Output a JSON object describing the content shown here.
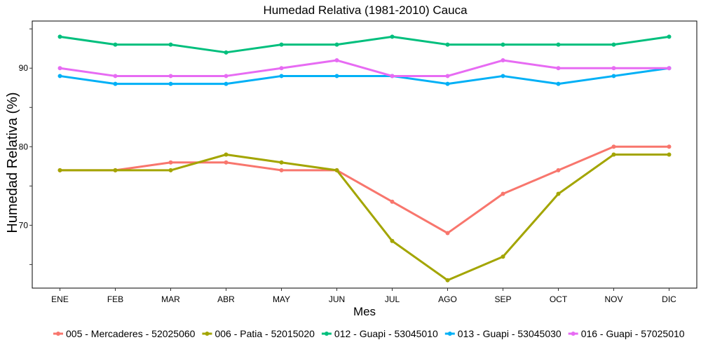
{
  "chart_data": {
    "type": "line",
    "title": "Humedad Relativa (1981-2010)  Cauca",
    "xlabel": "Mes",
    "ylabel": "Humedad Relativa  (%)",
    "categories": [
      "ENE",
      "FEB",
      "MAR",
      "ABR",
      "MAY",
      "JUN",
      "JUL",
      "AGO",
      "SEP",
      "OCT",
      "NOV",
      "DIC"
    ],
    "ylim": [
      62,
      96
    ],
    "yticks": [
      70,
      80,
      90
    ],
    "yticks_minor": [
      65,
      75,
      85,
      95
    ],
    "grid": false,
    "legend_position": "bottom",
    "series": [
      {
        "name": "005 - Mercaderes - 52025060",
        "color": "#F8766D",
        "values": [
          77,
          77,
          78,
          78,
          77,
          77,
          73,
          69,
          74,
          77,
          80,
          80
        ]
      },
      {
        "name": "006 - Patia - 52015020",
        "color": "#A3A500",
        "values": [
          77,
          77,
          77,
          79,
          78,
          77,
          68,
          63,
          66,
          74,
          79,
          79
        ]
      },
      {
        "name": "012 - Guapi - 53045010",
        "color": "#00BF7D",
        "values": [
          94,
          93,
          93,
          92,
          93,
          93,
          94,
          93,
          93,
          93,
          93,
          94
        ]
      },
      {
        "name": "013 - Guapi - 53045030",
        "color": "#00B0F6",
        "values": [
          89,
          88,
          88,
          88,
          89,
          89,
          89,
          88,
          89,
          88,
          89,
          90
        ]
      },
      {
        "name": "016 - Guapi - 57025010",
        "color": "#E76BF3",
        "values": [
          90,
          89,
          89,
          89,
          90,
          91,
          89,
          89,
          91,
          90,
          90,
          90
        ]
      }
    ]
  }
}
